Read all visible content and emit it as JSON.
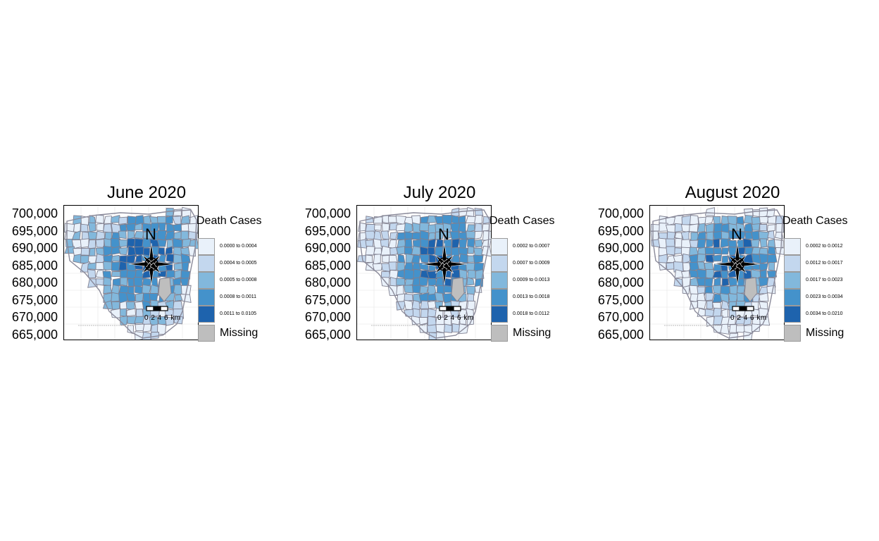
{
  "y_axis_labels": [
    "700,000",
    "695,000",
    "690,000",
    "685,000",
    "680,000",
    "675,000",
    "670,000",
    "665,000"
  ],
  "legend_title": "Death Cases",
  "missing_label": "Missing",
  "north_label": "N",
  "scale_bar_label": "0 2 4 6 km",
  "colors": {
    "class1": "#e9f1fa",
    "class2": "#c3d7ee",
    "class3": "#82b8dc",
    "class4": "#4492cb",
    "class5": "#1e63ad",
    "missing": "#bebebe",
    "boundary": "#7f7f8f"
  },
  "panels": [
    {
      "title": "June 2020",
      "legend": [
        "0.0000 to 0.0004",
        "0.0004 to 0.0005",
        "0.0005 to 0.0008",
        "0.0008 to 0.0011",
        "0.0011 to 0.0105"
      ]
    },
    {
      "title": "July 2020",
      "legend": [
        "0.0002 to 0.0007",
        "0.0007 to 0.0009",
        "0.0009 to 0.0013",
        "0.0013 to 0.0018",
        "0.0018 to 0.0112"
      ]
    },
    {
      "title": "August 2020",
      "legend": [
        "0.0002 to 0.0012",
        "0.0012 to 0.0017",
        "0.0017 to 0.0023",
        "0.0023 to 0.0034",
        "0.0034 to 0.0210"
      ]
    }
  ]
}
